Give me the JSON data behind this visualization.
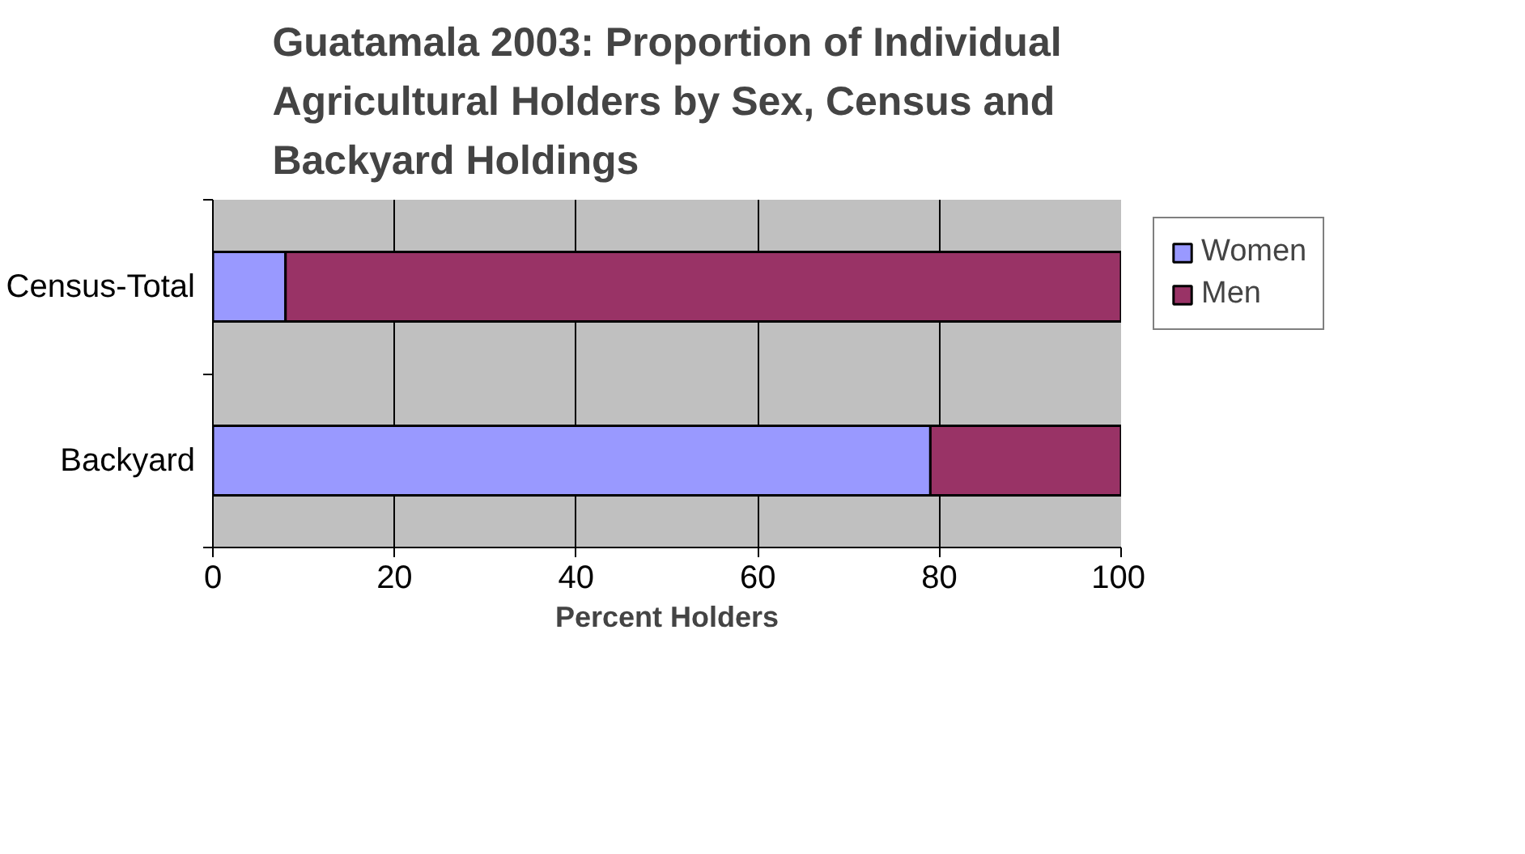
{
  "chart_data": {
    "type": "bar",
    "orientation": "horizontal",
    "stacked": true,
    "title": "Guatamala 2003: Proportion of Individual Agricultural Holders by Sex, Census and Backyard Holdings",
    "xlabel": "Percent Holders",
    "categories": [
      "Census-Total",
      "Backyard"
    ],
    "series": [
      {
        "name": "Women",
        "color": "#9999ff",
        "values": [
          8,
          79
        ]
      },
      {
        "name": "Men",
        "color": "#993366",
        "values": [
          92,
          21
        ]
      }
    ],
    "xlim": [
      0,
      100
    ],
    "xticks": [
      0,
      20,
      40,
      60,
      80,
      100
    ],
    "grid": "x",
    "legend": "right"
  }
}
